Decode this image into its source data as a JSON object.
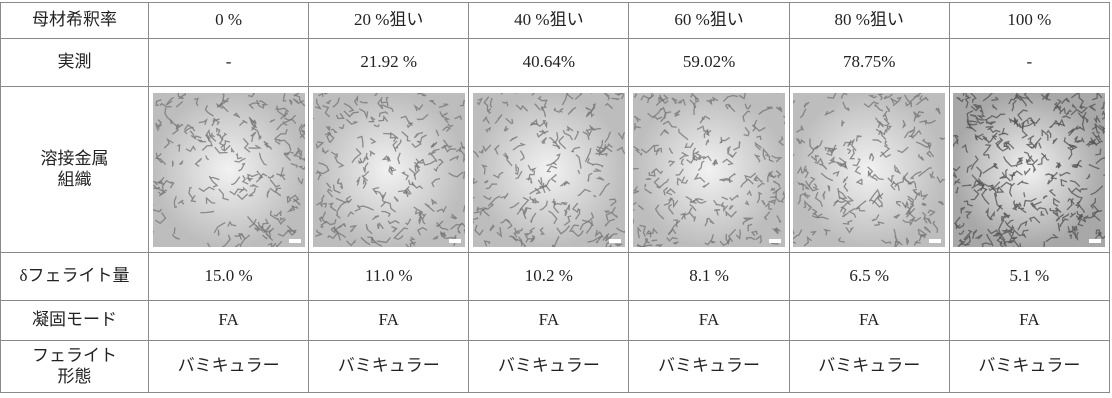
{
  "table": {
    "rows": [
      [
        "母材希釈率",
        "0 %",
        "20 %狙い",
        "40 %狙い",
        "60 %狙い",
        "80 %狙い",
        "100 %"
      ],
      [
        "実測",
        "-",
        "21.92 %",
        "40.64%",
        "59.02%",
        "78.75%",
        "-"
      ],
      [
        "溶接金属\n組織"
      ],
      [
        "δフェライト量",
        "15.0 %",
        "11.0 %",
        "10.2 %",
        "8.1 %",
        "6.5 %",
        "5.1 %"
      ],
      [
        "凝固モード",
        "FA",
        "FA",
        "FA",
        "FA",
        "FA",
        "FA"
      ],
      [
        "フェライト\n形態",
        "バミキュラー",
        "バミキュラー",
        "バミキュラー",
        "バミキュラー",
        "バミキュラー",
        "バミキュラー"
      ]
    ]
  }
}
